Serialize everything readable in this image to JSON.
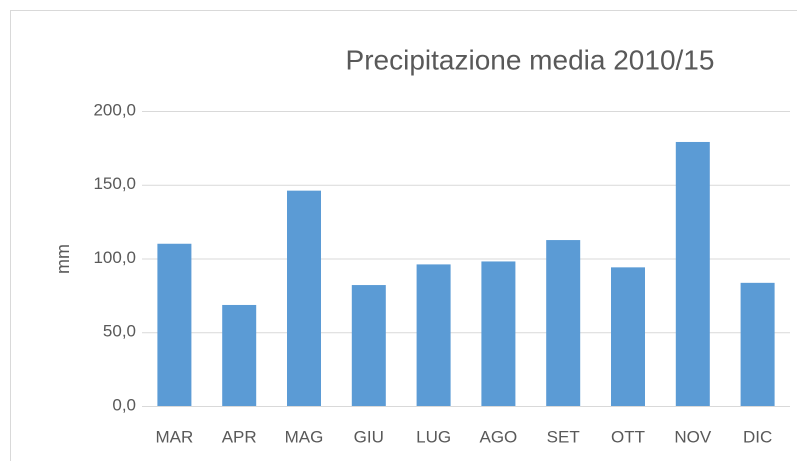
{
  "chart_data": {
    "type": "bar",
    "title": "Precipitazione media 2010/15",
    "y_label": "mm",
    "categories": [
      "MAR",
      "APR",
      "MAG",
      "GIU",
      "LUG",
      "AGO",
      "SET",
      "OTT",
      "NOV",
      "DIC"
    ],
    "values": [
      110,
      68.5,
      146,
      82,
      96,
      98,
      112.5,
      94,
      179,
      83.5
    ],
    "color": "#5b9bd5",
    "ylim": [
      0,
      200
    ],
    "yticks": [
      {
        "value": 0,
        "label": "0,0"
      },
      {
        "value": 50,
        "label": "50,0"
      },
      {
        "value": 100,
        "label": "100,0"
      },
      {
        "value": 150,
        "label": "150,0"
      },
      {
        "value": 200,
        "label": "200,0"
      }
    ],
    "grid": true
  }
}
